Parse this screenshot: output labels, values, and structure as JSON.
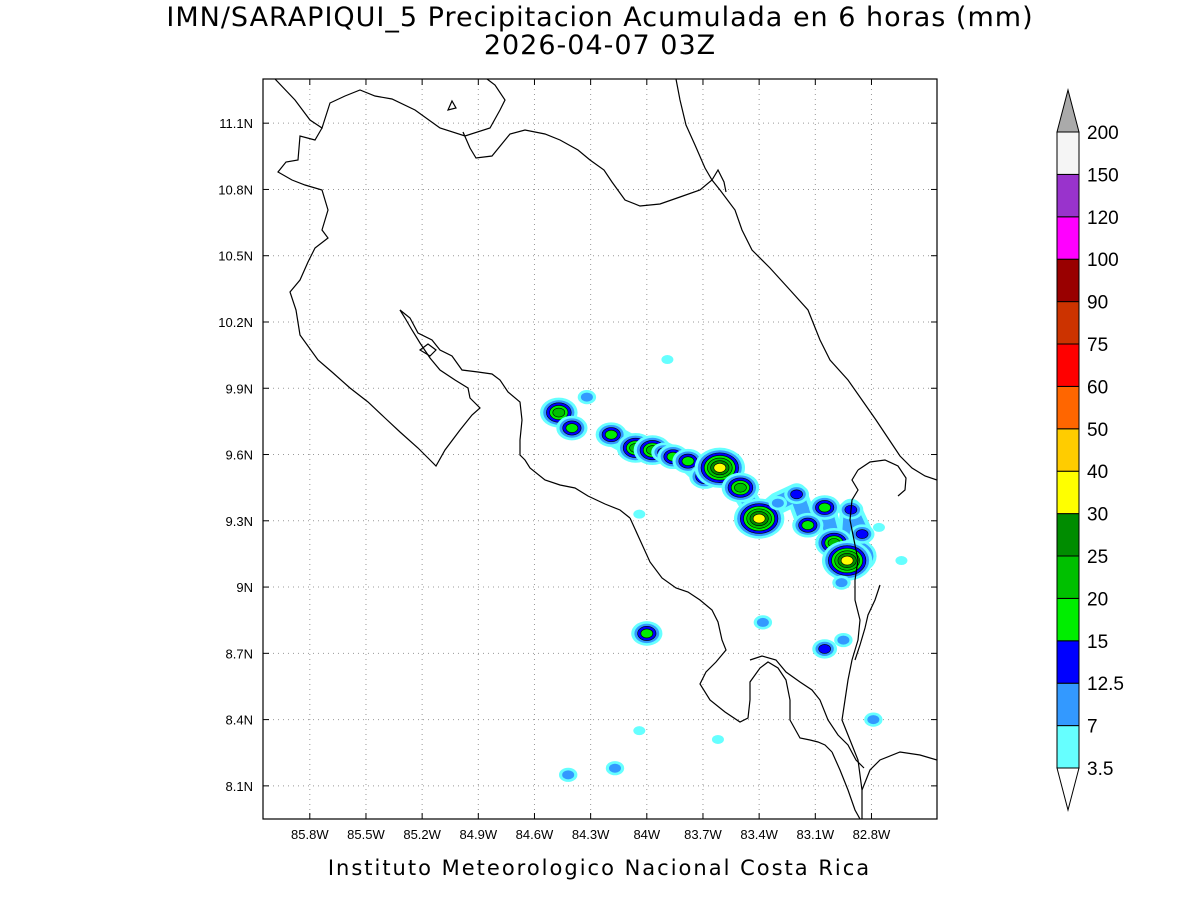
{
  "title": {
    "line1": "IMN/SARAPIQUI_5 Precipitacion Acumulada en 6 horas (mm)",
    "line2": "2026-04-07 03Z"
  },
  "footer": "Instituto Meteorologico Nacional Costa Rica",
  "map": {
    "lon_range": [
      -86.05,
      -82.45
    ],
    "lat_range": [
      7.95,
      11.3
    ],
    "lon_ticks": [
      {
        "value": -85.8,
        "label": "85.8W"
      },
      {
        "value": -85.5,
        "label": "85.5W"
      },
      {
        "value": -85.2,
        "label": "85.2W"
      },
      {
        "value": -84.9,
        "label": "84.9W"
      },
      {
        "value": -84.6,
        "label": "84.6W"
      },
      {
        "value": -84.3,
        "label": "84.3W"
      },
      {
        "value": -84.0,
        "label": "84W"
      },
      {
        "value": -83.7,
        "label": "83.7W"
      },
      {
        "value": -83.4,
        "label": "83.4W"
      },
      {
        "value": -83.1,
        "label": "83.1W"
      },
      {
        "value": -82.8,
        "label": "82.8W"
      }
    ],
    "lat_ticks": [
      {
        "value": 11.1,
        "label": "11.1N"
      },
      {
        "value": 10.8,
        "label": "10.8N"
      },
      {
        "value": 10.5,
        "label": "10.5N"
      },
      {
        "value": 10.2,
        "label": "10.2N"
      },
      {
        "value": 9.9,
        "label": "9.9N"
      },
      {
        "value": 9.6,
        "label": "9.6N"
      },
      {
        "value": 9.3,
        "label": "9.3N"
      },
      {
        "value": 9.0,
        "label": "9N"
      },
      {
        "value": 8.7,
        "label": "8.7N"
      },
      {
        "value": 8.4,
        "label": "8.4N"
      },
      {
        "value": 8.1,
        "label": "8.1N"
      }
    ],
    "grid": true
  },
  "colorbar": {
    "levels": [
      {
        "label": "3.5",
        "color": "#66ffff"
      },
      {
        "label": "7",
        "color": "#3399ff"
      },
      {
        "label": "12.5",
        "color": "#0000ff"
      },
      {
        "label": "15",
        "color": "#00ee00"
      },
      {
        "label": "20",
        "color": "#00c000"
      },
      {
        "label": "25",
        "color": "#008c00"
      },
      {
        "label": "30",
        "color": "#ffff00"
      },
      {
        "label": "40",
        "color": "#ffcc00"
      },
      {
        "label": "50",
        "color": "#ff6600"
      },
      {
        "label": "60",
        "color": "#ff0000"
      },
      {
        "label": "75",
        "color": "#cc3300"
      },
      {
        "label": "90",
        "color": "#990000"
      },
      {
        "label": "100",
        "color": "#ff00ff"
      },
      {
        "label": "120",
        "color": "#9933cc"
      },
      {
        "label": "150",
        "color": "#f5f5f5"
      },
      {
        "label": "200",
        "color": ""
      }
    ],
    "top_arrow_color": "#aaaaaa",
    "bottom_arrow_color": "#ffffff"
  },
  "precip_cells": [
    {
      "lon": -84.47,
      "lat": 9.79,
      "mm": 20
    },
    {
      "lon": -84.4,
      "lat": 9.72,
      "mm": 15
    },
    {
      "lon": -84.32,
      "lat": 9.86,
      "mm": 7
    },
    {
      "lon": -84.19,
      "lat": 9.69,
      "mm": 15
    },
    {
      "lon": -84.06,
      "lat": 9.63,
      "mm": 20
    },
    {
      "lon": -83.97,
      "lat": 9.62,
      "mm": 20
    },
    {
      "lon": -83.91,
      "lat": 9.61,
      "mm": 12.5
    },
    {
      "lon": -83.86,
      "lat": 9.59,
      "mm": 15
    },
    {
      "lon": -83.78,
      "lat": 9.57,
      "mm": 15
    },
    {
      "lon": -83.69,
      "lat": 9.5,
      "mm": 15
    },
    {
      "lon": -83.61,
      "lat": 9.54,
      "mm": 30
    },
    {
      "lon": -83.5,
      "lat": 9.45,
      "mm": 20
    },
    {
      "lon": -83.4,
      "lat": 9.31,
      "mm": 30
    },
    {
      "lon": -83.3,
      "lat": 9.38,
      "mm": 7
    },
    {
      "lon": -83.2,
      "lat": 9.42,
      "mm": 12.5
    },
    {
      "lon": -83.14,
      "lat": 9.28,
      "mm": 15
    },
    {
      "lon": -83.05,
      "lat": 9.36,
      "mm": 15
    },
    {
      "lon": -83.0,
      "lat": 9.2,
      "mm": 20
    },
    {
      "lon": -82.89,
      "lat": 9.14,
      "mm": 25
    },
    {
      "lon": -82.93,
      "lat": 9.12,
      "mm": 30
    },
    {
      "lon": -82.91,
      "lat": 9.35,
      "mm": 12.5
    },
    {
      "lon": -82.85,
      "lat": 9.24,
      "mm": 12.5
    },
    {
      "lon": -82.96,
      "lat": 9.02,
      "mm": 7
    },
    {
      "lon": -84.0,
      "lat": 8.79,
      "mm": 15
    },
    {
      "lon": -84.04,
      "lat": 9.33,
      "mm": 3.5
    },
    {
      "lon": -83.89,
      "lat": 10.03,
      "mm": 3.5
    },
    {
      "lon": -83.05,
      "lat": 8.72,
      "mm": 12.5
    },
    {
      "lon": -82.95,
      "lat": 8.76,
      "mm": 7
    },
    {
      "lon": -82.79,
      "lat": 8.4,
      "mm": 7
    },
    {
      "lon": -84.17,
      "lat": 8.18,
      "mm": 7
    },
    {
      "lon": -84.42,
      "lat": 8.15,
      "mm": 7
    },
    {
      "lon": -83.38,
      "lat": 8.84,
      "mm": 7
    },
    {
      "lon": -83.62,
      "lat": 8.31,
      "mm": 3.5
    },
    {
      "lon": -84.04,
      "lat": 8.35,
      "mm": 3.5
    },
    {
      "lon": -82.64,
      "lat": 9.12,
      "mm": 3.5
    },
    {
      "lon": -82.76,
      "lat": 9.27,
      "mm": 3.5
    }
  ]
}
